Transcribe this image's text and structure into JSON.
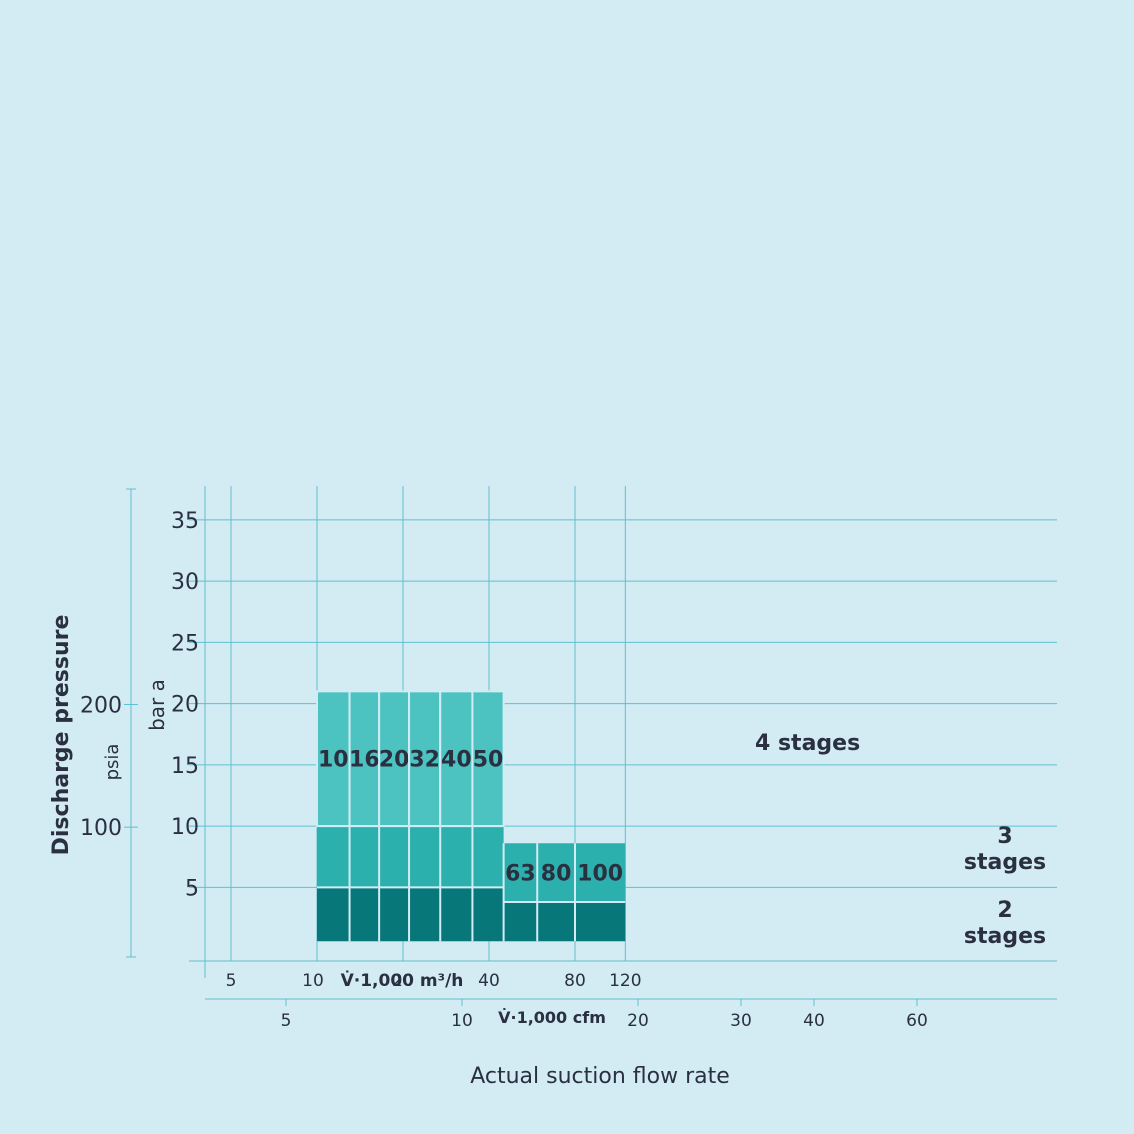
{
  "chart_data": {
    "type": "bar",
    "title": "",
    "xlabel": "Actual suction flow rate",
    "x_axis_primary": {
      "unit_label": "V̇·1,000 m³/h",
      "ticks": [
        "5",
        "10",
        "20",
        "40",
        "80",
        "120"
      ],
      "scale": "log"
    },
    "x_axis_secondary": {
      "unit_label": "V̇·1,000 cfm",
      "ticks": [
        "5",
        "10",
        "20",
        "30",
        "40",
        "60"
      ],
      "scale": "log"
    },
    "ylabel": "Discharge pressure",
    "y_axis_primary": {
      "unit_label": "bar a",
      "ticks": [
        "5",
        "10",
        "15",
        "20",
        "25",
        "30",
        "35"
      ],
      "ylim": [
        0,
        37
      ]
    },
    "y_axis_secondary": {
      "unit_label": "psia",
      "ticks": [
        "100",
        "200"
      ]
    },
    "grid": true,
    "series": [
      {
        "name": "4 stages",
        "color": "#4dc3c1",
        "y_range": [
          10,
          21
        ],
        "blocks": [
          {
            "label": "10",
            "x_range": [
              10,
              13
            ]
          },
          {
            "label": "16",
            "x_range": [
              13,
              16.5
            ]
          },
          {
            "label": "20",
            "x_range": [
              16.5,
              21
            ]
          },
          {
            "label": "32",
            "x_range": [
              21,
              27
            ]
          },
          {
            "label": "40",
            "x_range": [
              27,
              35
            ]
          },
          {
            "label": "50",
            "x_range": [
              35,
              45
            ]
          }
        ]
      },
      {
        "name": "3 stages",
        "color": "#2cb0ad",
        "segments": [
          {
            "x_range": [
              10,
              45
            ],
            "y_range": [
              5,
              10
            ]
          },
          {
            "label": "63",
            "x_range": [
              45,
              59
            ],
            "y_range": [
              3.8,
              8.6
            ]
          },
          {
            "label": "80",
            "x_range": [
              59,
              80
            ],
            "y_range": [
              3.8,
              8.6
            ]
          },
          {
            "label": "100",
            "x_range": [
              80,
              120
            ],
            "y_range": [
              3.8,
              8.6
            ]
          }
        ]
      },
      {
        "name": "2 stages",
        "color": "#08777a",
        "segments": [
          {
            "x_range": [
              10,
              45
            ],
            "y_range": [
              0.6,
              5
            ]
          },
          {
            "x_range": [
              45,
              120
            ],
            "y_range": [
              0.6,
              3.8
            ]
          }
        ]
      }
    ],
    "annotations": [
      {
        "text": "4 stages"
      },
      {
        "text": "3\nstages"
      },
      {
        "text": "2\nstages"
      }
    ]
  }
}
